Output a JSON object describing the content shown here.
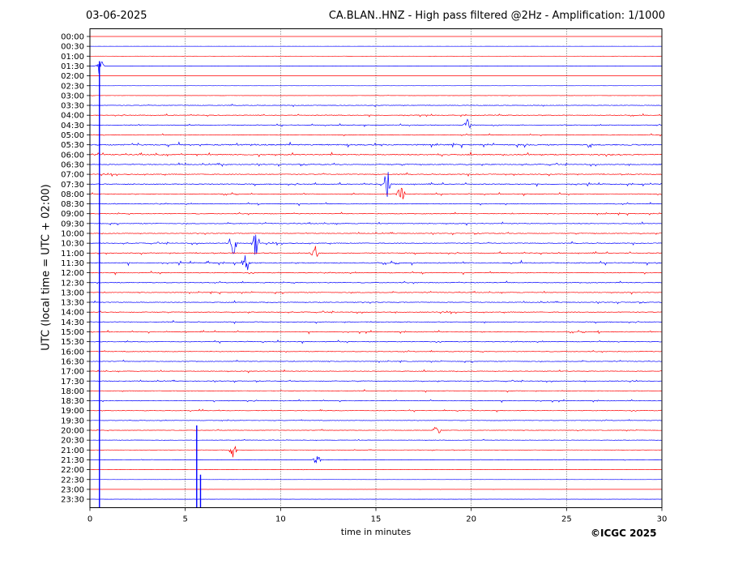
{
  "header": {
    "date": "03-06-2025",
    "title": "CA.BLAN..HNZ - High pass filtered @2Hz - Amplification: 1/1000"
  },
  "footer": {
    "copyright": "©ICGC 2025"
  },
  "chart_data": {
    "type": "line",
    "title": "CA.BLAN..HNZ - High pass filtered @2Hz - Amplification: 1/1000",
    "xlabel": "time in minutes",
    "ylabel": "UTC (local time = UTC + 02:00)",
    "xlim": [
      0,
      30
    ],
    "xticks": [
      0,
      5,
      10,
      15,
      20,
      25,
      30
    ],
    "grid": "vertical dotted lines at x tick positions",
    "trace_colors": [
      "#ff0000",
      "#0000ff"
    ],
    "rows": [
      "00:00",
      "00:30",
      "01:00",
      "01:30",
      "02:00",
      "02:30",
      "03:00",
      "03:30",
      "04:00",
      "04:30",
      "05:00",
      "05:30",
      "06:00",
      "06:30",
      "07:00",
      "07:30",
      "08:00",
      "08:30",
      "09:00",
      "09:30",
      "10:00",
      "10:30",
      "11:00",
      "11:30",
      "12:00",
      "12:30",
      "13:00",
      "13:30",
      "14:00",
      "14:30",
      "15:00",
      "15:30",
      "16:00",
      "16:30",
      "17:00",
      "17:30",
      "18:00",
      "18:30",
      "19:00",
      "19:30",
      "20:00",
      "20:30",
      "21:00",
      "21:30",
      "22:00",
      "22:30",
      "23:00",
      "23:30"
    ],
    "activity": [
      0.05,
      0.05,
      0.1,
      0.06,
      0.05,
      0.04,
      0.15,
      0.4,
      0.45,
      0.45,
      0.5,
      0.9,
      0.75,
      0.6,
      0.55,
      0.6,
      0.5,
      0.55,
      0.5,
      0.5,
      0.5,
      0.55,
      0.55,
      0.7,
      0.55,
      0.5,
      0.5,
      0.5,
      0.5,
      0.5,
      0.55,
      0.5,
      0.45,
      0.45,
      0.45,
      0.45,
      0.45,
      0.45,
      0.4,
      0.35,
      0.35,
      0.3,
      0.25,
      0.2,
      0.12,
      0.08,
      0.08,
      0.06
    ],
    "events": [
      {
        "time": "07:30",
        "minute": 15.6,
        "strength": 1.6
      },
      {
        "time": "08:00",
        "minute": 16.3,
        "strength": 1.1
      },
      {
        "time": "10:30",
        "minute": 7.5,
        "strength": 1.4
      },
      {
        "time": "10:30",
        "minute": 8.7,
        "strength": 1.4
      },
      {
        "time": "11:00",
        "minute": 11.8,
        "strength": 0.9
      },
      {
        "time": "11:30",
        "minute": 8.2,
        "strength": 1.0
      },
      {
        "time": "01:30",
        "minute": 0.5,
        "strength": 1.0
      },
      {
        "time": "20:00",
        "minute": 18.2,
        "strength": 0.6
      },
      {
        "time": "21:00",
        "minute": 7.5,
        "strength": 0.7
      },
      {
        "time": "21:30",
        "minute": 11.9,
        "strength": 0.5
      },
      {
        "time": "04:30",
        "minute": 19.8,
        "strength": 0.7
      }
    ],
    "artifacts": [
      {
        "time": "from 01:30",
        "minute": 0.5,
        "description": "vertical line through late rows"
      },
      {
        "time": "from 20:00",
        "minute": 5.6,
        "description": "vertical line through late rows"
      },
      {
        "time": "from 22:30",
        "minute": 5.8,
        "description": "vertical line through late rows"
      }
    ]
  }
}
